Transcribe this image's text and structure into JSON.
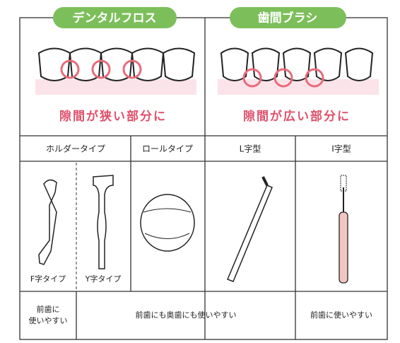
{
  "header": {
    "floss": "デンタルフロス",
    "brush": "歯間ブラシ"
  },
  "use": {
    "floss": "隙間が狭い部分に",
    "brush": "隙間が広い部分に"
  },
  "columns": [
    "ホルダータイプ",
    "ロールタイプ",
    "L字型",
    "I字型"
  ],
  "holder_types": [
    "F字タイプ",
    "Y字タイプ"
  ],
  "notes": {
    "holder": [
      "前歯に",
      "使いやすい"
    ],
    "middle": "前歯にも奥歯にも使いやすい",
    "i_type": "前歯に使いやすい"
  }
}
